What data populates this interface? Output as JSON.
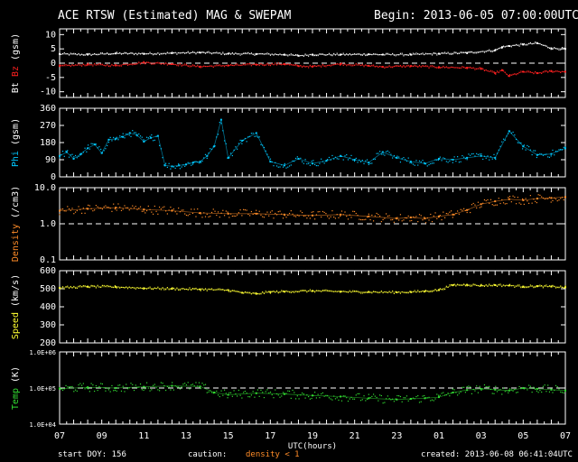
{
  "header": {
    "title": "ACE RTSW (Estimated) MAG & SWEPAM",
    "begin": "Begin: 2013-06-05 07:00:00UTC"
  },
  "footer": {
    "start_doy": "start DOY: 156",
    "caution": "caution:",
    "density_note": "density < 1",
    "created": "created: 2013-06-08 06:41:04UTC"
  },
  "colors": {
    "background": "#000000",
    "axes": "#ffffff",
    "bt": "#ffffff",
    "bz": "#ff2020",
    "phi": "#00c8ff",
    "density": "#ff8c28",
    "speed": "#ffff32",
    "temp": "#32dc32",
    "caution_note": "#ff8c28"
  },
  "chart_data": {
    "type": "scatter",
    "xlabel": "UTC(hours)",
    "x_ticks": [
      "07",
      "09",
      "11",
      "13",
      "15",
      "17",
      "19",
      "21",
      "23",
      "01",
      "03",
      "05",
      "07"
    ],
    "x_range_hours": [
      0,
      72
    ],
    "panels": [
      {
        "id": "mag",
        "ylabel_parts": [
          "Bt",
          "Bz",
          "(gsm)"
        ],
        "ylim": [
          -12,
          12
        ],
        "y_ticks": [
          "10",
          "5",
          "0",
          "-5",
          "-10"
        ],
        "y_tick_values": [
          10,
          5,
          0,
          -5,
          -10
        ],
        "reference_line": 0,
        "series": [
          {
            "name": "Bt",
            "x": [
              0,
              4,
              8,
              12,
              16,
              20,
              24,
              28,
              32,
              34,
              36,
              40,
              44,
              46,
              50,
              54,
              58,
              62,
              63,
              64,
              66,
              68,
              70,
              72
            ],
            "y": [
              3.2,
              3.0,
              3.4,
              3.3,
              3.5,
              3.7,
              3.3,
              3.2,
              3.0,
              2.6,
              3.0,
              3.0,
              3.1,
              3.0,
              3.0,
              3.3,
              3.6,
              4.5,
              5.6,
              6.0,
              6.5,
              7.0,
              5.2,
              5.0
            ]
          },
          {
            "name": "Bz",
            "x": [
              0,
              4,
              8,
              12,
              16,
              20,
              24,
              28,
              32,
              34,
              36,
              40,
              44,
              46,
              50,
              54,
              58,
              60,
              62,
              63,
              64,
              66,
              68,
              70,
              72
            ],
            "y": [
              -1.0,
              -0.5,
              -0.8,
              0.2,
              -0.3,
              -1.2,
              -0.8,
              -0.5,
              -0.3,
              -1.0,
              -1.2,
              -0.3,
              -0.9,
              -1.3,
              -1.0,
              -1.4,
              -1.6,
              -2.0,
              -3.5,
              -2.5,
              -4.5,
              -3.0,
              -3.5,
              -2.8,
              -3.0
            ]
          }
        ]
      },
      {
        "id": "phi",
        "ylabel_parts": [
          "Phi",
          "(gsm)"
        ],
        "ylim": [
          0,
          360
        ],
        "y_ticks": [
          "360",
          "270",
          "180",
          "90",
          "0"
        ],
        "y_tick_values": [
          360,
          270,
          180,
          90,
          0
        ],
        "series": [
          {
            "name": "Phi",
            "x": [
              0,
              1,
              2,
              3,
              4,
              5,
              6,
              7,
              8,
              9,
              10,
              11,
              12,
              13,
              14,
              15,
              16,
              17,
              18,
              19,
              20,
              21,
              22,
              23,
              24,
              26,
              28,
              30,
              32,
              34,
              36,
              38,
              40,
              42,
              44,
              46,
              48,
              50,
              52,
              54,
              56,
              58,
              60,
              62,
              64,
              66,
              68,
              70,
              72
            ],
            "y": [
              110,
              130,
              95,
              120,
              150,
              170,
              125,
              195,
              200,
              210,
              230,
              220,
              185,
              205,
              215,
              60,
              55,
              60,
              65,
              75,
              80,
              110,
              160,
              300,
              100,
              190,
              230,
              80,
              60,
              95,
              70,
              85,
              110,
              90,
              75,
              130,
              100,
              80,
              70,
              95,
              90,
              100,
              110,
              100,
              240,
              160,
              115,
              120,
              150
            ]
          }
        ]
      },
      {
        "id": "density",
        "ylabel_parts": [
          "Density",
          "(/cm3)"
        ],
        "log": true,
        "ylim": [
          0.1,
          10
        ],
        "y_ticks": [
          "10.0",
          "1.0",
          "0.1"
        ],
        "y_tick_values": [
          10,
          1,
          0.1
        ],
        "reference_line": 1,
        "series": [
          {
            "name": "Density",
            "x": [
              0,
              4,
              8,
              12,
              16,
              20,
              24,
              28,
              32,
              36,
              40,
              44,
              48,
              50,
              52,
              54,
              56,
              58,
              60,
              62,
              64,
              66,
              68,
              70,
              72
            ],
            "y": [
              2.3,
              2.6,
              2.8,
              2.5,
              2.3,
              2.0,
              1.9,
              1.9,
              1.8,
              1.7,
              1.8,
              1.6,
              1.4,
              1.5,
              1.4,
              1.6,
              1.8,
              2.4,
              3.5,
              4.2,
              4.8,
              4.5,
              5.0,
              5.2,
              5.5
            ]
          }
        ]
      },
      {
        "id": "speed",
        "ylabel_parts": [
          "Speed",
          "(km/s)"
        ],
        "ylim": [
          200,
          600
        ],
        "y_ticks": [
          "600",
          "500",
          "400",
          "300",
          "200"
        ],
        "y_tick_values": [
          600,
          500,
          400,
          300,
          200
        ],
        "series": [
          {
            "name": "Speed",
            "x": [
              0,
              4,
              8,
              12,
              16,
              20,
              24,
              26,
              28,
              30,
              32,
              36,
              40,
              44,
              48,
              50,
              52,
              54,
              56,
              58,
              60,
              62,
              64,
              66,
              68,
              70,
              72
            ],
            "y": [
              505,
              512,
              510,
              503,
              500,
              497,
              492,
              478,
              472,
              482,
              484,
              488,
              484,
              482,
              480,
              482,
              486,
              493,
              520,
              522,
              518,
              520,
              518,
              512,
              514,
              512,
              508
            ]
          }
        ]
      },
      {
        "id": "temp",
        "ylabel_parts": [
          "Temp",
          "(K)"
        ],
        "log": true,
        "ylim": [
          10000,
          1000000
        ],
        "y_ticks": [
          "1.0E+06",
          "1.0E+05",
          "1.0E+04"
        ],
        "y_tick_values": [
          1000000,
          100000,
          10000
        ],
        "reference_line": 100000,
        "series": [
          {
            "name": "Temp",
            "x": [
              0,
              4,
              8,
              12,
              16,
              20,
              22,
              24,
              28,
              32,
              36,
              40,
              44,
              48,
              50,
              52,
              54,
              56,
              58,
              60,
              62,
              64,
              66,
              68,
              70,
              72
            ],
            "y": [
              95000,
              105000,
              100000,
              108000,
              115000,
              110000,
              75000,
              65000,
              72000,
              68000,
              62000,
              58000,
              52000,
              48000,
              50000,
              52000,
              56000,
              75000,
              88000,
              95000,
              90000,
              85000,
              100000,
              95000,
              90000,
              85000
            ]
          }
        ]
      }
    ]
  }
}
